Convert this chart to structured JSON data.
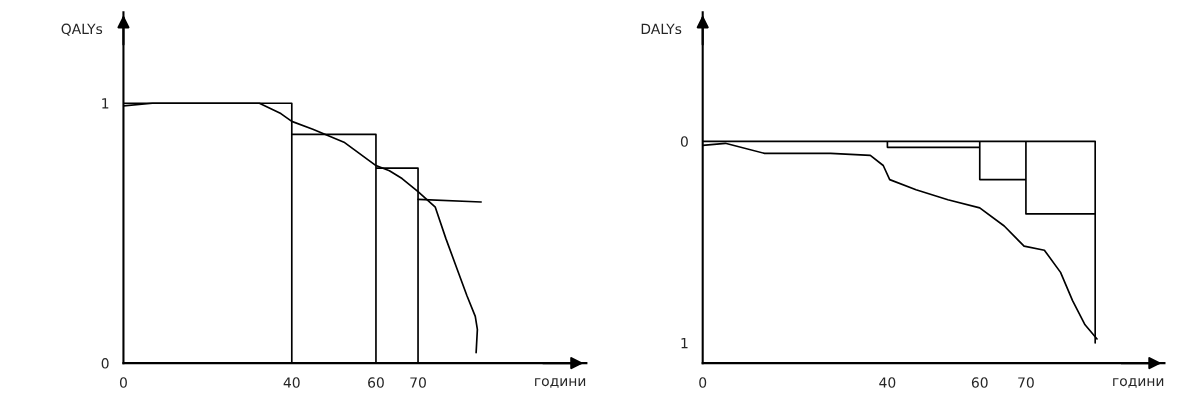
{
  "chart_data": [
    {
      "type": "line",
      "xlabel": "години",
      "ylabel": "QALYs",
      "xlim": [
        0,
        110
      ],
      "xticks": [
        0,
        40,
        60,
        70
      ],
      "ylim": [
        0,
        1.35
      ],
      "yticks": [
        0,
        1
      ],
      "series": [
        {
          "color": "#000000",
          "x": [
            0,
            6.9,
            32.3,
            37.4,
            40,
            45,
            52.4,
            60,
            63.2,
            66.2,
            70,
            74.1,
            76.6,
            79.1,
            81.6,
            83.6,
            84.1,
            83.8
          ],
          "values": [
            0.99,
            1.0,
            1.0,
            0.96,
            0.93,
            0.9,
            0.85,
            0.76,
            0.74,
            0.71,
            0.66,
            0.6,
            0.48,
            0.37,
            0.26,
            0.18,
            0.13,
            0.04
          ]
        },
        {
          "color": "#000000",
          "x": [
            70,
            85
          ],
          "values": [
            0.63,
            0.62
          ]
        },
        {
          "color": "#000000",
          "x": [
            0,
            40,
            40,
            null,
            40,
            40,
            60,
            60,
            null,
            60,
            60,
            70,
            70
          ],
          "values": [
            1.0,
            1.0,
            0,
            null,
            0.93,
            0.88,
            0.88,
            0,
            null,
            0.76,
            0.75,
            0.75,
            0
          ]
        }
      ]
    },
    {
      "type": "line",
      "xlabel": "години",
      "ylabel": "DALYs",
      "xlim": [
        0,
        100
      ],
      "xticks": [
        0,
        40,
        60,
        70
      ],
      "ylim": [
        1.1,
        -0.64
      ],
      "yticks": [
        0,
        1
      ],
      "series": [
        {
          "color": "#000000",
          "x": [
            0,
            4.9,
            13.4,
            27.7,
            36.3,
            39.1,
            40.5,
            46.2,
            53.1,
            60,
            65.3,
            69.6,
            74,
            77.5,
            80.1,
            82.8,
            85.4
          ],
          "values": [
            0.02,
            0.01,
            0.06,
            0.06,
            0.07,
            0.12,
            0.19,
            0.24,
            0.29,
            0.33,
            0.42,
            0.52,
            0.54,
            0.65,
            0.79,
            0.91,
            0.98
          ]
        },
        {
          "color": "#000000",
          "x": [
            0,
            85,
            85,
            null,
            40,
            40,
            60,
            null,
            60,
            60,
            70,
            null,
            70,
            70,
            85
          ],
          "values": [
            0,
            0,
            1.0,
            null,
            0,
            0.03,
            0.03,
            null,
            0,
            0.19,
            0.19,
            null,
            0,
            0.36,
            0.36
          ]
        }
      ]
    }
  ]
}
